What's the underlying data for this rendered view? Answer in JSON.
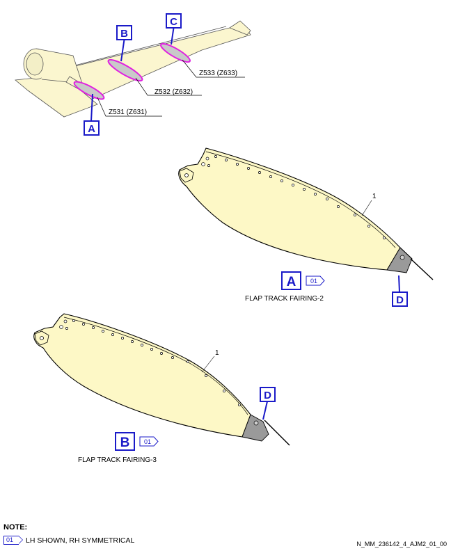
{
  "callouts": {
    "a": "A",
    "b": "B",
    "c": "C",
    "d": "D"
  },
  "zones": {
    "z531": "Z531 (Z631)",
    "z532": "Z532 (Z632)",
    "z533": "Z533 (Z633)"
  },
  "item_number": "1",
  "view_a": {
    "letter": "A",
    "tag": "01",
    "caption": "FLAP TRACK FAIRING-2"
  },
  "view_b": {
    "letter": "B",
    "tag": "01",
    "caption": "FLAP TRACK FAIRING-3"
  },
  "note": {
    "heading": "NOTE:",
    "tag": "01",
    "text": "LH SHOWN, RH SYMMETRICAL"
  },
  "reference": "N_MM_236142_4_AJM2_01_00",
  "colors": {
    "callout_blue": "#1a1ac8",
    "highlight_magenta": "#e020e0",
    "fairing_fill": "#fdf8c6",
    "tip_gray": "#9a9a9a",
    "aircraft_fill": "#fbf6cf"
  }
}
